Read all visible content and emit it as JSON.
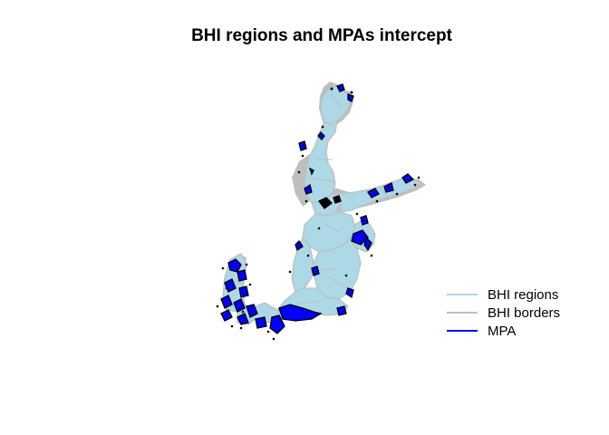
{
  "title": "BHI regions and MPAs intercept",
  "colors": {
    "region_fill": "#add8e6",
    "border": "#bebebe",
    "mpa_fill": "#0000ff",
    "mpa_outline": "#000000"
  },
  "legend": [
    {
      "label": "BHI regions",
      "color": "#add8e6"
    },
    {
      "label": "BHI borders",
      "color": "#bebebe"
    },
    {
      "label": "MPA",
      "color": "#0000ff"
    }
  ]
}
